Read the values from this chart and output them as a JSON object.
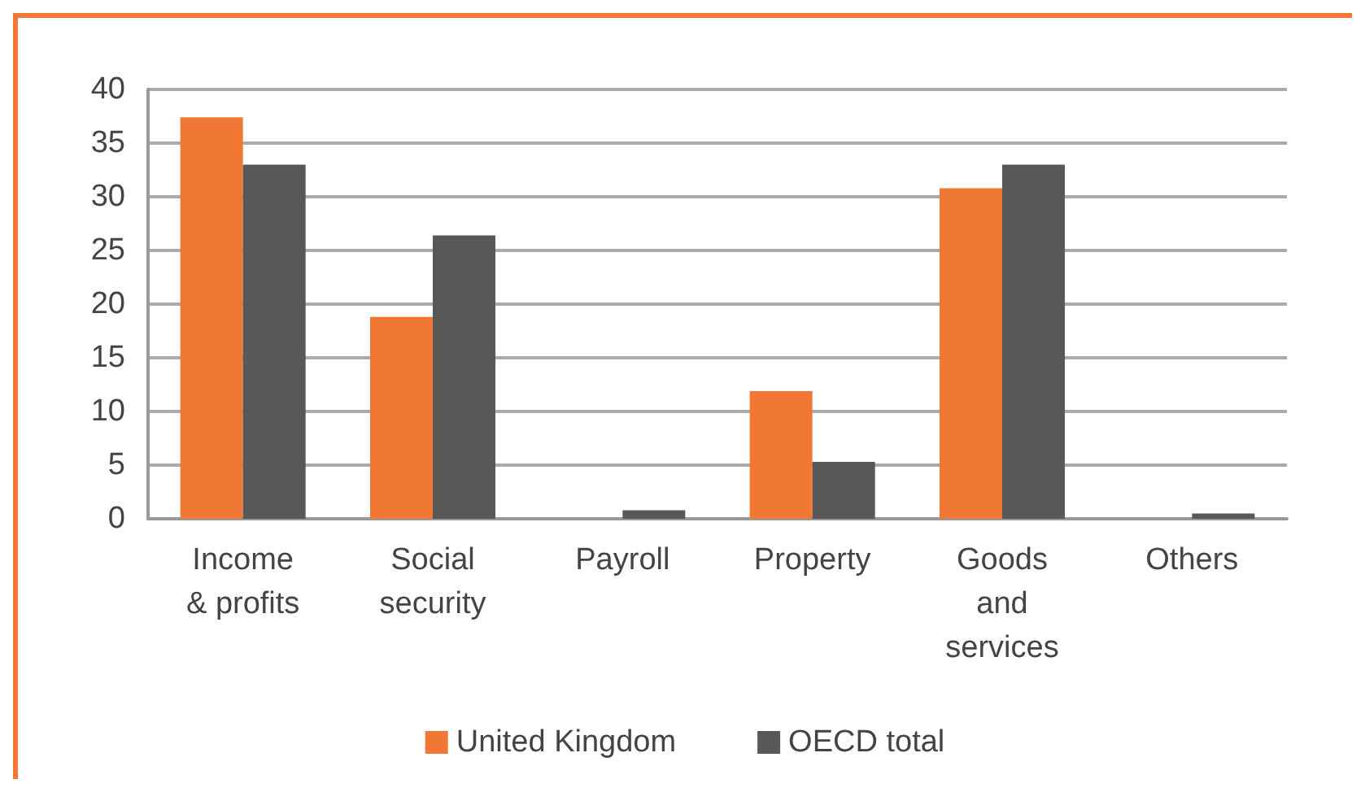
{
  "chart_data": {
    "type": "bar",
    "categories": [
      "Income\n& profits",
      "Social\nsecurity",
      "Payroll",
      "Property",
      "Goods\nand\nservices",
      "Others"
    ],
    "series": [
      {
        "name": "United Kingdom",
        "color": "#f07834",
        "values": [
          37.4,
          18.8,
          0,
          11.9,
          30.8,
          0
        ]
      },
      {
        "name": "OECD total",
        "color": "#595856",
        "values": [
          33.0,
          26.4,
          0.8,
          5.3,
          33.0,
          0.5
        ]
      }
    ],
    "ylim": [
      0,
      40
    ],
    "yticks": [
      0,
      5,
      10,
      15,
      20,
      25,
      30,
      35,
      40
    ],
    "grid": "y",
    "legend": "bottom"
  }
}
